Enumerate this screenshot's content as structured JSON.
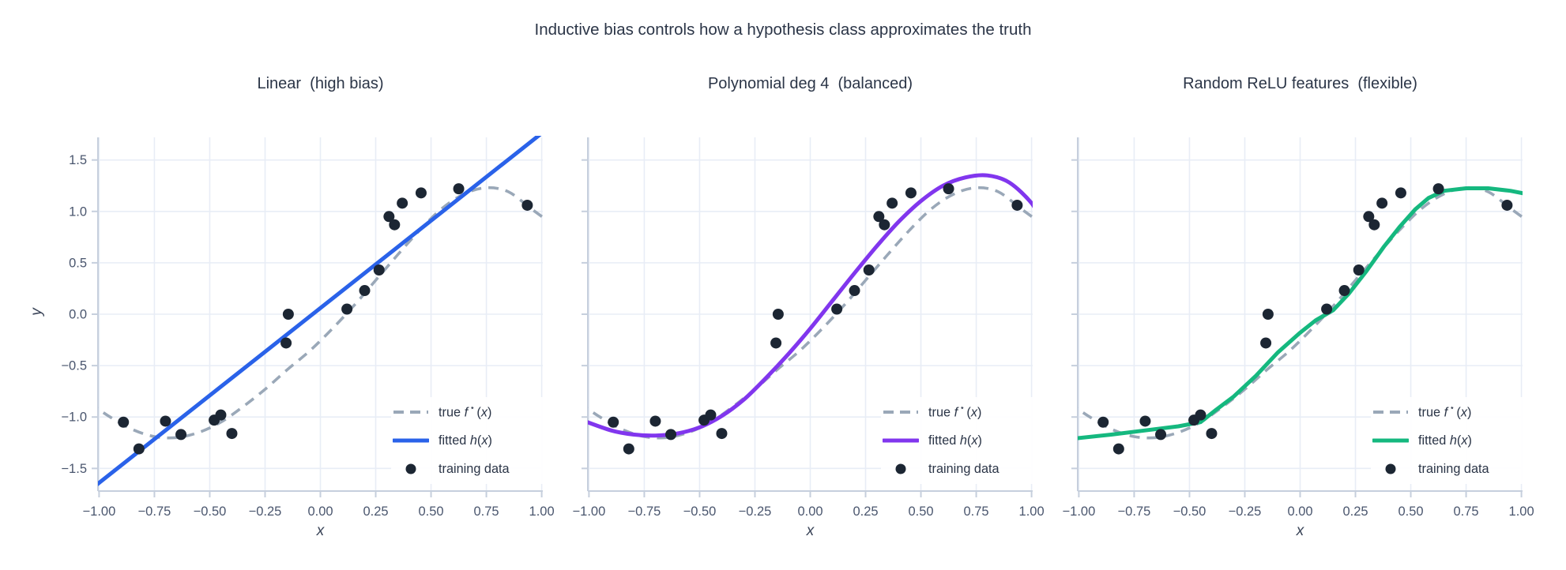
{
  "figure": {
    "title": "Inductive bias controls how a hypothesis class approximates the truth"
  },
  "chart_data": {
    "type": "line",
    "xlabel": "x",
    "ylabel": "y",
    "xlim": [
      -1.005,
      1.005
    ],
    "ylim": [
      -1.72,
      1.72
    ],
    "grid": true,
    "x_ticks": {
      "values": [
        -1.0,
        -0.75,
        -0.5,
        -0.25,
        0.0,
        0.25,
        0.5,
        0.75,
        1.0
      ],
      "labels": [
        "−1.00",
        "−0.75",
        "−0.50",
        "−0.25",
        "0.00",
        "0.25",
        "0.50",
        "0.75",
        "1.00"
      ]
    },
    "y_ticks": {
      "values": [
        1.5,
        1.0,
        0.5,
        0.0,
        -0.5,
        -1.0,
        -1.5
      ],
      "labels": [
        "1.5",
        "1.0",
        "0.5",
        "0.0",
        "−0.5",
        "−1.0",
        "−1.5"
      ]
    },
    "true_fn": {
      "color": "#9aa8b8",
      "dashed": true,
      "x": [
        -1.045,
        -0.95,
        -0.85,
        -0.75,
        -0.65,
        -0.55,
        -0.45,
        -0.35,
        -0.25,
        -0.15,
        -0.05,
        0.05,
        0.15,
        0.25,
        0.35,
        0.45,
        0.55,
        0.65,
        0.75,
        0.85,
        0.95,
        1.045
      ],
      "y": [
        -0.86,
        -1.0,
        -1.12,
        -1.19,
        -1.2,
        -1.15,
        -1.05,
        -0.9,
        -0.73,
        -0.54,
        -0.36,
        -0.15,
        0.08,
        0.33,
        0.58,
        0.82,
        1.03,
        1.17,
        1.23,
        1.19,
        1.03,
        0.88
      ]
    },
    "training": {
      "color": "#1c2633",
      "points": [
        [
          -0.89,
          -1.05
        ],
        [
          -0.82,
          -1.31
        ],
        [
          -0.7,
          -1.04
        ],
        [
          -0.63,
          -1.17
        ],
        [
          -0.48,
          -1.03
        ],
        [
          -0.45,
          -0.98
        ],
        [
          -0.4,
          -1.16
        ],
        [
          -0.155,
          -0.28
        ],
        [
          -0.145,
          0.0
        ],
        [
          0.12,
          0.05
        ],
        [
          0.2,
          0.23
        ],
        [
          0.265,
          0.43
        ],
        [
          0.31,
          0.95
        ],
        [
          0.335,
          0.87
        ],
        [
          0.37,
          1.08
        ],
        [
          0.455,
          1.18
        ],
        [
          0.625,
          1.22
        ],
        [
          0.935,
          1.06
        ]
      ]
    },
    "panels": [
      {
        "title": "Linear  (high bias)",
        "fit_color": "#2a62e9",
        "fit": {
          "smooth": false,
          "x": [
            -1.045,
            1.045
          ],
          "y": [
            -1.717,
            1.837
          ]
        }
      },
      {
        "title": "Polynomial deg 4  (balanced)",
        "fit_color": "#8136ee",
        "fit": {
          "smooth": true,
          "x": [
            -1.045,
            -0.9,
            -0.8,
            -0.7,
            -0.6,
            -0.5,
            -0.4,
            -0.3,
            -0.2,
            -0.1,
            0.0,
            0.1,
            0.2,
            0.3,
            0.4,
            0.5,
            0.6,
            0.7,
            0.8,
            0.9,
            1.0,
            1.045
          ],
          "y": [
            -1.02,
            -1.13,
            -1.17,
            -1.18,
            -1.16,
            -1.1,
            -0.99,
            -0.83,
            -0.62,
            -0.39,
            -0.14,
            0.13,
            0.4,
            0.66,
            0.9,
            1.1,
            1.25,
            1.33,
            1.35,
            1.28,
            1.08,
            0.9
          ]
        }
      },
      {
        "title": "Random ReLU features  (flexible)",
        "fit_color": "#15b87f",
        "fit": {
          "smooth": false,
          "x": [
            -1.045,
            -0.85,
            -0.7,
            -0.55,
            -0.45,
            -0.38,
            -0.3,
            -0.2,
            -0.1,
            0.0,
            0.07,
            0.15,
            0.22,
            0.3,
            0.38,
            0.45,
            0.52,
            0.58,
            0.65,
            0.75,
            0.85,
            0.95,
            1.045
          ],
          "y": [
            -1.215,
            -1.17,
            -1.13,
            -1.09,
            -1.05,
            -0.93,
            -0.8,
            -0.6,
            -0.37,
            -0.18,
            -0.06,
            0.04,
            0.2,
            0.42,
            0.66,
            0.85,
            1.02,
            1.13,
            1.2,
            1.225,
            1.225,
            1.2,
            1.16
          ]
        }
      }
    ],
    "legend": {
      "position": "lower-right",
      "entries": [
        {
          "id": "true-f",
          "swatch": "dashed-line",
          "segments": [
            {
              "t": "true "
            },
            {
              "t": "f",
              "i": true
            },
            {
              "t": " ⋆ ",
              "sup": true
            },
            {
              "t": "("
            },
            {
              "t": "x",
              "i": true
            },
            {
              "t": ")"
            }
          ]
        },
        {
          "id": "fitted-h",
          "swatch": "solid-line",
          "segments": [
            {
              "t": "fitted "
            },
            {
              "t": "h",
              "i": true
            },
            {
              "t": "("
            },
            {
              "t": "x",
              "i": true
            },
            {
              "t": ")"
            }
          ]
        },
        {
          "id": "training-data",
          "swatch": "dot",
          "segments": [
            {
              "t": "training data"
            }
          ]
        }
      ]
    }
  }
}
